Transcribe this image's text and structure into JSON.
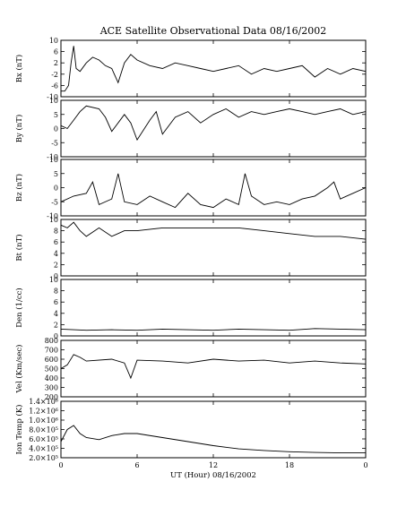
{
  "chart_data": {
    "type": "line",
    "title": "ACE Satellite Observational Data   08/16/2002",
    "xlabel": "UT (Hour)   08/16/2002",
    "xlim": [
      0,
      24
    ],
    "xticks": [
      "0",
      "6",
      "12",
      "18",
      "0"
    ],
    "grid": false,
    "panels": [
      {
        "ylabel": "Bx (nT)",
        "ylim": [
          -10,
          10
        ],
        "yticks": [
          "10",
          "6",
          "2",
          "-2",
          "-6",
          "-10"
        ],
        "series": [
          {
            "x": [
              0,
              0.3,
              0.6,
              0.8,
              1.0,
              1.2,
              1.5,
              2.0,
              2.5,
              3.0,
              3.5,
              4.0,
              4.5,
              5.0,
              5.5,
              6.0,
              7.0,
              8.0,
              9.0,
              10.0,
              11.0,
              12.0,
              13.0,
              14.0,
              15.0,
              16.0,
              17.0,
              18.0,
              19.0,
              20.0,
              21.0,
              22.0,
              23.0,
              24.0
            ],
            "y": [
              -8,
              -8,
              -6,
              2,
              8,
              0,
              -1,
              2,
              4,
              3,
              1,
              0,
              -5,
              2,
              5,
              3,
              1,
              0,
              2,
              1,
              0,
              -1,
              0,
              1,
              -2,
              0,
              -1,
              0,
              1,
              -3,
              0,
              -2,
              0,
              -1
            ]
          }
        ]
      },
      {
        "ylabel": "By (nT)",
        "ylim": [
          -10,
          10
        ],
        "yticks": [
          "10",
          "5",
          "0",
          "-5",
          "-10"
        ],
        "series": [
          {
            "x": [
              0,
              0.5,
              1.0,
              1.5,
              2.0,
              3.0,
              3.5,
              4.0,
              5.0,
              5.5,
              6.0,
              7.0,
              7.5,
              8.0,
              9.0,
              10.0,
              11.0,
              12.0,
              13.0,
              14.0,
              15.0,
              16.0,
              17.0,
              18.0,
              19.0,
              20.0,
              21.0,
              22.0,
              23.0,
              24.0
            ],
            "y": [
              1,
              0,
              3,
              6,
              8,
              7,
              4,
              -1,
              5,
              2,
              -4,
              3,
              6,
              -2,
              4,
              6,
              2,
              5,
              7,
              4,
              6,
              5,
              6,
              7,
              6,
              5,
              6,
              7,
              5,
              6
            ]
          }
        ]
      },
      {
        "ylabel": "Bz (nT)",
        "ylim": [
          -10,
          10
        ],
        "yticks": [
          "10",
          "5",
          "0",
          "-5",
          "-10"
        ],
        "series": [
          {
            "x": [
              0,
              1.0,
              2.0,
              2.5,
              3.0,
              4.0,
              4.5,
              5.0,
              6.0,
              7.0,
              8.0,
              9.0,
              10.0,
              11.0,
              12.0,
              13.0,
              14.0,
              14.5,
              15.0,
              16.0,
              17.0,
              18.0,
              19.0,
              20.0,
              21.0,
              21.5,
              22.0,
              23.0,
              24.0
            ],
            "y": [
              -5,
              -3,
              -2,
              2,
              -6,
              -4,
              5,
              -5,
              -6,
              -3,
              -5,
              -7,
              -2,
              -6,
              -7,
              -4,
              -6,
              5,
              -3,
              -6,
              -5,
              -6,
              -4,
              -3,
              0,
              2,
              -4,
              -2,
              0
            ]
          }
        ]
      },
      {
        "ylabel": "Bt (nT)",
        "ylim": [
          0,
          10
        ],
        "yticks": [
          "10",
          "8",
          "6",
          "4",
          "2",
          "0"
        ],
        "series": [
          {
            "x": [
              0,
              0.5,
              1.0,
              1.5,
              2.0,
              3.0,
              4.0,
              5.0,
              6.0,
              8.0,
              10.0,
              12.0,
              14.0,
              16.0,
              18.0,
              20.0,
              22.0,
              24.0
            ],
            "y": [
              9,
              8.5,
              9.5,
              8,
              7,
              8.5,
              7,
              8,
              8,
              8.5,
              8.5,
              8.5,
              8.5,
              8,
              7.5,
              7,
              7,
              6.5
            ]
          }
        ]
      },
      {
        "ylabel": "Den (1/cc)",
        "ylim": [
          0,
          10
        ],
        "yticks": [
          "10",
          "8",
          "6",
          "4",
          "2",
          "0"
        ],
        "series": [
          {
            "x": [
              0,
              2.0,
              4.0,
              6.0,
              8.0,
              10.0,
              12.0,
              14.0,
              16.0,
              18.0,
              20.0,
              22.0,
              24.0
            ],
            "y": [
              1.2,
              1.0,
              1.1,
              1.0,
              1.2,
              1.1,
              1.0,
              1.2,
              1.1,
              1.0,
              1.3,
              1.2,
              1.1
            ]
          }
        ]
      },
      {
        "ylabel": "Vel (Km/sec)",
        "ylim": [
          200,
          800
        ],
        "yticks": [
          "800",
          "700",
          "600",
          "500",
          "400",
          "300",
          "200"
        ],
        "series": [
          {
            "x": [
              0,
              0.5,
              1.0,
              1.5,
              2.0,
              4.0,
              5.0,
              5.5,
              6.0,
              8.0,
              10.0,
              12.0,
              14.0,
              16.0,
              18.0,
              20.0,
              22.0,
              24.0
            ],
            "y": [
              500,
              540,
              650,
              620,
              580,
              600,
              560,
              400,
              590,
              580,
              560,
              600,
              580,
              590,
              560,
              580,
              560,
              550
            ]
          }
        ]
      },
      {
        "ylabel": "Ion Temp (K)",
        "ylim": [
          0,
          1400000
        ],
        "yticks": [
          "1.4×10⁶",
          "1.2×10⁶",
          "1.0×10⁶",
          "8.0×10⁵",
          "6.0×10⁵",
          "4.0×10⁵",
          "2.0×10⁵"
        ],
        "series": [
          {
            "x": [
              0,
              0.5,
              1.0,
              1.5,
              2.0,
              3.0,
              4.0,
              5.0,
              6.0,
              8.0,
              10.0,
              12.0,
              14.0,
              16.0,
              18.0,
              20.0,
              22.0,
              24.0
            ],
            "y": [
              400000,
              700000,
              800000,
              600000,
              500000,
              450000,
              550000,
              600000,
              600000,
              500000,
              400000,
              300000,
              220000,
              180000,
              150000,
              130000,
              120000,
              120000
            ]
          }
        ]
      }
    ]
  }
}
